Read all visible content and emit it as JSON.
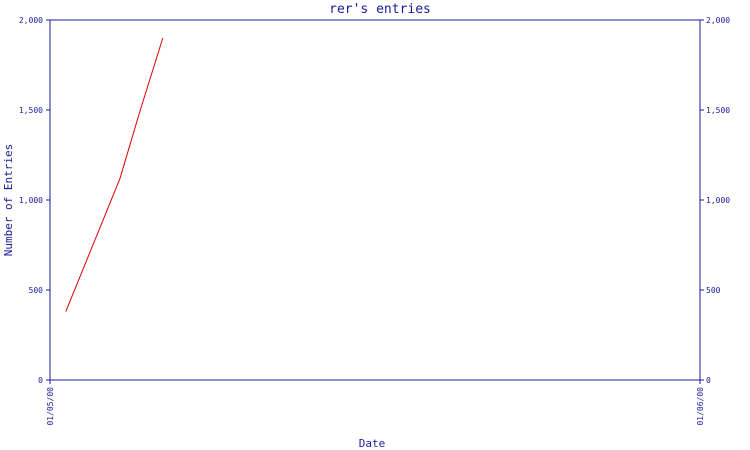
{
  "chart_data": {
    "type": "line",
    "title": "rer's entries",
    "xlabel": "Date",
    "ylabel": "Number of Entries",
    "ylim": [
      0,
      2000
    ],
    "y_ticks": [
      0,
      500,
      1000,
      1500,
      2000
    ],
    "y_tick_labels": [
      "0",
      "500",
      "1,000",
      "1,500",
      "2,000"
    ],
    "x_tick_labels": [
      "01/05/00",
      "01/06/00"
    ],
    "x_range": [
      "2000-01-05",
      "2000-01-06"
    ],
    "series": [
      {
        "color": "#dd0000",
        "x": [
          "2000-01-05 00:35",
          "2000-01-05 02:35",
          "2000-01-05 03:20",
          "2000-01-05 04:10"
        ],
        "values": [
          380,
          1120,
          1500,
          1900
        ]
      }
    ],
    "grid": false,
    "colors": {
      "axis": "#1a1a9c",
      "text": "#1a1a9c",
      "line": "#dd0000",
      "background": "#ffffff"
    }
  }
}
